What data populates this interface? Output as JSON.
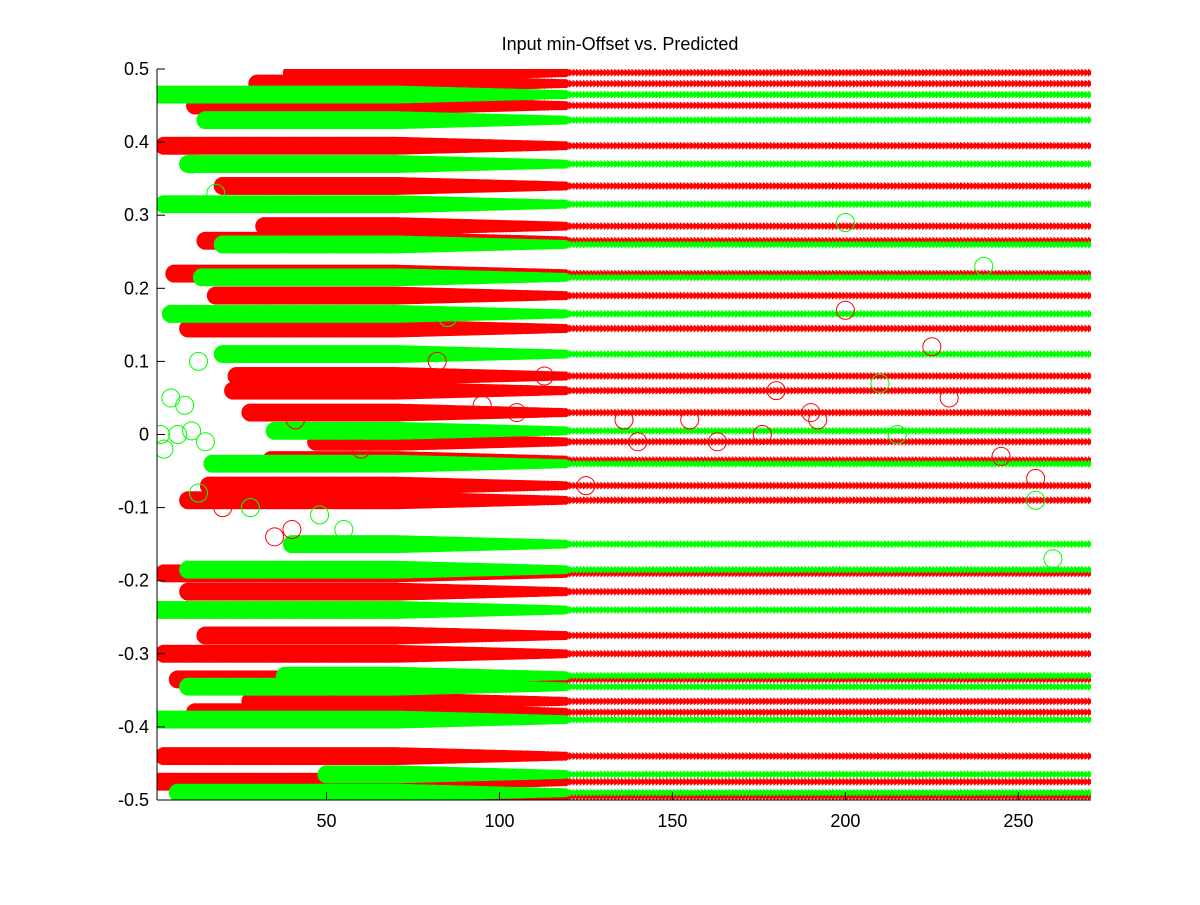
{
  "chart_data": {
    "type": "scatter",
    "title": "Input min-Offset vs. Predicted",
    "xlabel": "",
    "ylabel": "",
    "xlim": [
      1,
      271
    ],
    "ylim": [
      -0.5,
      0.5
    ],
    "x_ticks": [
      50,
      100,
      150,
      200,
      250
    ],
    "y_ticks": [
      -0.5,
      -0.4,
      -0.3,
      -0.2,
      -0.1,
      0,
      0.1,
      0.2,
      0.3,
      0.4,
      0.5
    ],
    "y_tick_labels": [
      "-0.5",
      "-0.4",
      "-0.3",
      "-0.2",
      "-0.1",
      "0",
      "0.1",
      "0.2",
      "0.3",
      "0.4",
      "0.5"
    ],
    "x_tick_labels": [
      "50",
      "100",
      "150",
      "200",
      "250"
    ],
    "grid": false,
    "colors": {
      "red": "#ff0000",
      "green": "#00ff00",
      "dark_red": "#aa0000"
    },
    "series": [
      {
        "color": "red",
        "marker": "filled-circle",
        "rows": [
          {
            "y": 0.495,
            "x_start": 40,
            "x_end": 271
          },
          {
            "y": 0.48,
            "x_start": 30,
            "x_end": 271
          },
          {
            "y": 0.45,
            "x_start": 12,
            "x_end": 271
          },
          {
            "y": 0.395,
            "x_start": 3,
            "x_end": 271
          },
          {
            "y": 0.34,
            "x_start": 20,
            "x_end": 271
          },
          {
            "y": 0.285,
            "x_start": 32,
            "x_end": 271
          },
          {
            "y": 0.265,
            "x_start": 15,
            "x_end": 271
          },
          {
            "y": 0.22,
            "x_start": 6,
            "x_end": 271
          },
          {
            "y": 0.19,
            "x_start": 18,
            "x_end": 271
          },
          {
            "y": 0.145,
            "x_start": 10,
            "x_end": 271
          },
          {
            "y": 0.08,
            "x_start": 24,
            "x_end": 271
          },
          {
            "y": 0.06,
            "x_start": 23,
            "x_end": 271
          },
          {
            "y": 0.03,
            "x_start": 28,
            "x_end": 271
          },
          {
            "y": -0.01,
            "x_start": 47,
            "x_end": 271
          },
          {
            "y": -0.035,
            "x_start": 34,
            "x_end": 271
          },
          {
            "y": -0.07,
            "x_start": 16,
            "x_end": 271
          },
          {
            "y": -0.09,
            "x_start": 10,
            "x_end": 271
          },
          {
            "y": -0.19,
            "x_start": 3,
            "x_end": 271
          },
          {
            "y": -0.215,
            "x_start": 10,
            "x_end": 271
          },
          {
            "y": -0.275,
            "x_start": 15,
            "x_end": 271
          },
          {
            "y": -0.3,
            "x_start": 3,
            "x_end": 271
          },
          {
            "y": -0.335,
            "x_start": 7,
            "x_end": 271
          },
          {
            "y": -0.365,
            "x_start": 28,
            "x_end": 271
          },
          {
            "y": -0.38,
            "x_start": 12,
            "x_end": 271
          },
          {
            "y": -0.44,
            "x_start": 3,
            "x_end": 271
          },
          {
            "y": -0.475,
            "x_start": 1,
            "x_end": 271
          },
          {
            "y": -0.495,
            "x_start": 20,
            "x_end": 271
          }
        ]
      },
      {
        "color": "green",
        "marker": "filled-circle",
        "rows": [
          {
            "y": 0.465,
            "x_start": 1,
            "x_end": 271
          },
          {
            "y": 0.43,
            "x_start": 15,
            "x_end": 271
          },
          {
            "y": 0.37,
            "x_start": 10,
            "x_end": 271
          },
          {
            "y": 0.315,
            "x_start": 3,
            "x_end": 271
          },
          {
            "y": 0.26,
            "x_start": 20,
            "x_end": 271
          },
          {
            "y": 0.215,
            "x_start": 14,
            "x_end": 271
          },
          {
            "y": 0.165,
            "x_start": 5,
            "x_end": 271
          },
          {
            "y": 0.11,
            "x_start": 20,
            "x_end": 271
          },
          {
            "y": 0.005,
            "x_start": 35,
            "x_end": 271
          },
          {
            "y": -0.04,
            "x_start": 17,
            "x_end": 271
          },
          {
            "y": -0.15,
            "x_start": 40,
            "x_end": 271
          },
          {
            "y": -0.185,
            "x_start": 10,
            "x_end": 271
          },
          {
            "y": -0.24,
            "x_start": 1,
            "x_end": 271
          },
          {
            "y": -0.33,
            "x_start": 38,
            "x_end": 271
          },
          {
            "y": -0.345,
            "x_start": 10,
            "x_end": 271
          },
          {
            "y": -0.39,
            "x_start": 1,
            "x_end": 271
          },
          {
            "y": -0.465,
            "x_start": 50,
            "x_end": 271
          },
          {
            "y": -0.49,
            "x_start": 7,
            "x_end": 271
          }
        ]
      },
      {
        "color": "red",
        "marker": "open-circle",
        "points": [
          {
            "x": 20,
            "y": -0.1
          },
          {
            "x": 35,
            "y": -0.14
          },
          {
            "x": 40,
            "y": -0.13
          },
          {
            "x": 41,
            "y": 0.02
          },
          {
            "x": 38,
            "y": 0.07
          },
          {
            "x": 60,
            "y": -0.02
          },
          {
            "x": 95,
            "y": 0.04
          },
          {
            "x": 105,
            "y": 0.03
          },
          {
            "x": 113,
            "y": 0.08
          },
          {
            "x": 140,
            "y": -0.01
          },
          {
            "x": 155,
            "y": 0.02
          },
          {
            "x": 163,
            "y": -0.01
          },
          {
            "x": 180,
            "y": 0.06
          },
          {
            "x": 190,
            "y": 0.03
          },
          {
            "x": 200,
            "y": 0.17
          },
          {
            "x": 225,
            "y": 0.12
          },
          {
            "x": 230,
            "y": 0.05
          },
          {
            "x": 245,
            "y": -0.03
          },
          {
            "x": 255,
            "y": -0.06
          },
          {
            "x": 192,
            "y": 0.02
          },
          {
            "x": 176,
            "y": 0.0
          },
          {
            "x": 136,
            "y": 0.02
          },
          {
            "x": 125,
            "y": -0.07
          },
          {
            "x": 82,
            "y": 0.1
          }
        ]
      },
      {
        "color": "green",
        "marker": "open-circle",
        "points": [
          {
            "x": 2,
            "y": 0.0
          },
          {
            "x": 3,
            "y": -0.02
          },
          {
            "x": 5,
            "y": 0.05
          },
          {
            "x": 7,
            "y": 0.0
          },
          {
            "x": 9,
            "y": 0.04
          },
          {
            "x": 11,
            "y": 0.005
          },
          {
            "x": 15,
            "y": -0.01
          },
          {
            "x": 13,
            "y": -0.08
          },
          {
            "x": 18,
            "y": 0.33
          },
          {
            "x": 11,
            "y": 0.37
          },
          {
            "x": 13,
            "y": 0.1
          },
          {
            "x": 28,
            "y": -0.1
          },
          {
            "x": 48,
            "y": -0.11
          },
          {
            "x": 55,
            "y": -0.13
          },
          {
            "x": 85,
            "y": 0.16
          },
          {
            "x": 200,
            "y": 0.29
          },
          {
            "x": 210,
            "y": 0.07
          },
          {
            "x": 215,
            "y": 0.0
          },
          {
            "x": 240,
            "y": 0.23
          },
          {
            "x": 260,
            "y": -0.17
          },
          {
            "x": 255,
            "y": -0.09
          }
        ]
      }
    ]
  }
}
